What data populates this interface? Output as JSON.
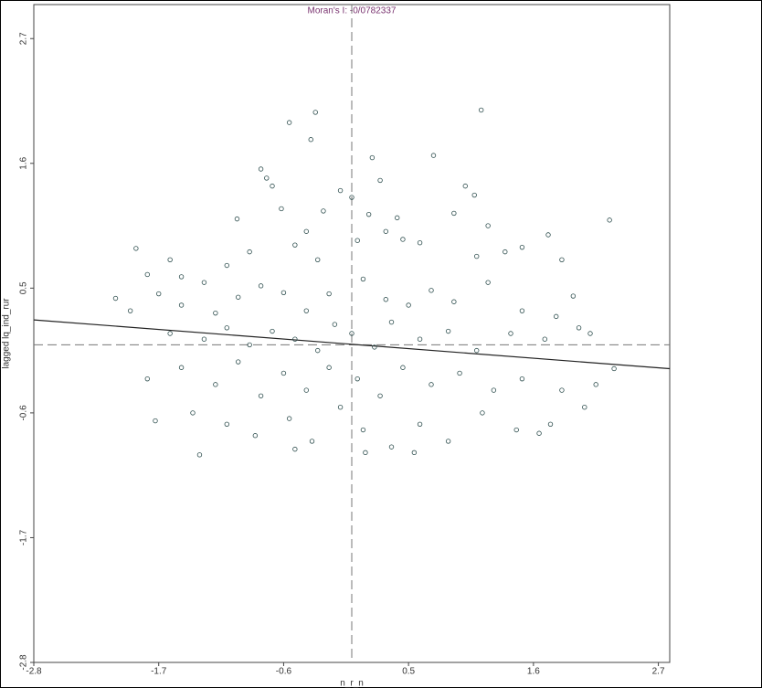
{
  "chart_data": {
    "type": "scatter",
    "title": "Moran's I: -0/0782337",
    "x_label": "n_r_n",
    "y_label": "lagged lq_ind_rur",
    "xlim": [
      -2.8,
      2.8
    ],
    "ylim": [
      -2.8,
      3.0
    ],
    "xticks": [
      -2.8,
      -1.7,
      -0.6,
      0.5,
      1.6,
      2.7
    ],
    "yticks": [
      -2.8,
      -1.7,
      -0.6,
      0.5,
      1.6,
      2.7
    ],
    "color": "#2f4f4f",
    "hline": 0,
    "vline": 0,
    "regression_line": {
      "x": [
        -2.8,
        2.8
      ],
      "y": [
        0.22,
        -0.21
      ]
    },
    "x": [
      -0.32,
      1.14,
      -0.55,
      -0.36,
      0.72,
      0.18,
      2.27,
      -2.08,
      -1.73,
      -1.34,
      2.31,
      1.73,
      -0.75,
      -1.01,
      -0.7,
      -0.8,
      -0.62,
      -0.1,
      0.0,
      0.25,
      1.0,
      1.08,
      0.4,
      1.2,
      0.9,
      0.15,
      -0.25,
      -0.4,
      0.3,
      -1.9,
      -1.6,
      -1.8,
      -1.5,
      -1.3,
      -1.1,
      -0.9,
      -0.5,
      -0.3,
      0.05,
      0.45,
      0.6,
      1.1,
      1.35,
      1.5,
      1.85,
      1.95,
      -1.95,
      -1.7,
      -1.5,
      -1.2,
      -1.0,
      -0.8,
      -0.6,
      -0.4,
      -0.2,
      0.1,
      0.3,
      0.5,
      0.7,
      0.9,
      1.2,
      1.5,
      1.8,
      2.0,
      -1.6,
      -1.3,
      -1.1,
      -0.9,
      -0.7,
      -0.5,
      -0.3,
      -0.15,
      0.0,
      0.2,
      0.35,
      0.6,
      0.85,
      1.1,
      1.4,
      1.7,
      2.1,
      -1.8,
      -1.5,
      -1.2,
      -1.0,
      -0.8,
      -0.6,
      -0.4,
      -0.2,
      0.05,
      0.25,
      0.45,
      0.7,
      0.95,
      1.25,
      1.5,
      1.85,
      2.15,
      -1.4,
      -1.1,
      -0.85,
      -0.55,
      -0.35,
      -0.1,
      0.1,
      0.35,
      0.6,
      0.85,
      1.15,
      1.45,
      1.75,
      2.05,
      -0.5,
      0.55,
      1.65,
      0.12
    ],
    "values": [
      2.05,
      2.07,
      1.96,
      1.81,
      1.67,
      1.65,
      1.1,
      0.41,
      -0.67,
      -0.97,
      -0.21,
      0.97,
      1.47,
      1.11,
      1.4,
      1.55,
      1.2,
      1.36,
      1.3,
      1.45,
      1.4,
      1.32,
      1.12,
      1.05,
      1.16,
      1.15,
      1.18,
      1.0,
      1.0,
      0.85,
      0.75,
      0.62,
      0.6,
      0.55,
      0.7,
      0.82,
      0.88,
      0.75,
      0.92,
      0.93,
      0.9,
      0.78,
      0.82,
      0.86,
      0.75,
      0.43,
      0.3,
      0.45,
      0.35,
      0.28,
      0.42,
      0.52,
      0.46,
      0.3,
      0.45,
      0.58,
      0.4,
      0.35,
      0.48,
      0.38,
      0.55,
      0.3,
      0.25,
      0.15,
      0.1,
      0.05,
      0.15,
      0.0,
      0.12,
      0.05,
      -0.05,
      0.18,
      0.1,
      -0.02,
      0.2,
      0.05,
      0.12,
      -0.05,
      0.1,
      0.05,
      0.1,
      -0.3,
      -0.2,
      -0.35,
      -0.15,
      -0.45,
      -0.25,
      -0.4,
      -0.2,
      -0.3,
      -0.45,
      -0.2,
      -0.35,
      -0.25,
      -0.4,
      -0.3,
      -0.4,
      -0.35,
      -0.6,
      -0.7,
      -0.8,
      -0.65,
      -0.85,
      -0.55,
      -0.75,
      -0.9,
      -0.7,
      -0.85,
      -0.6,
      -0.75,
      -0.7,
      -0.55,
      -0.92,
      -0.95,
      -0.78,
      -0.95
    ]
  }
}
